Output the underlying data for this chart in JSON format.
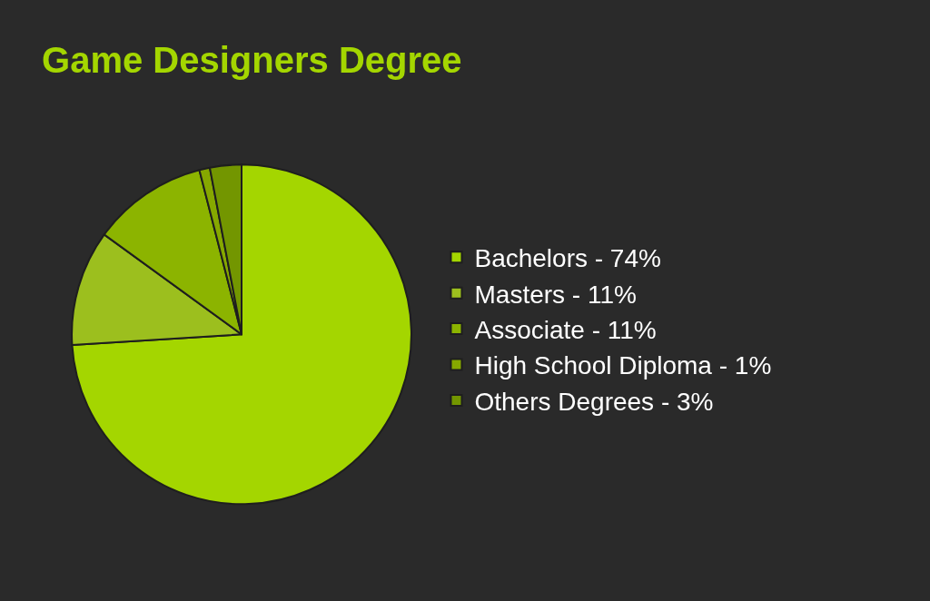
{
  "chart_data": {
    "type": "pie",
    "title": "Game Designers Degree",
    "categories": [
      "Bachelors - 74%",
      "Masters - 11%",
      "Associate - 11%",
      "High School Diploma - 1%",
      "Others Degrees - 3%"
    ],
    "values": [
      74,
      11,
      11,
      1,
      3
    ],
    "colors": [
      "#a4d600",
      "#9cbf1e",
      "#8cb400",
      "#86a800",
      "#739600"
    ],
    "legend": "right"
  }
}
